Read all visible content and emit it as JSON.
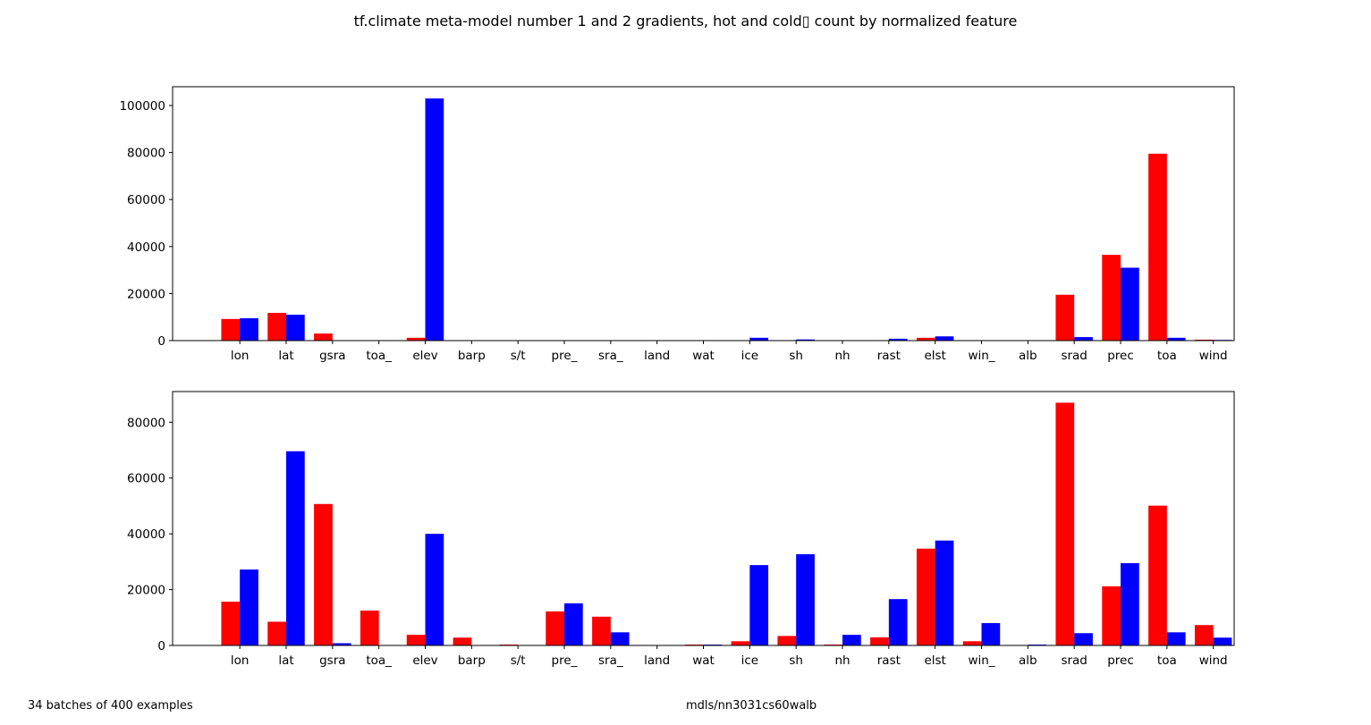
{
  "figure": {
    "title": "tf.climate meta-model number 1 and 2 gradients, hot and cold▯ count by normalized feature",
    "footer_left": "34 batches of 400 examples",
    "footer_center": "mdls/nn3031cs60walb"
  },
  "chart_data": [
    {
      "type": "bar",
      "categories": [
        "lon",
        "lat",
        "gsra",
        "toa_",
        "elev",
        "barp",
        "s/t",
        "pre_",
        "sra_",
        "land",
        "wat",
        "ice",
        "sh",
        "nh",
        "rast",
        "elst",
        "win_",
        "alb",
        "srad",
        "prec",
        "toa",
        "wind"
      ],
      "series": [
        {
          "color": "#ff0000",
          "values": [
            9200,
            11800,
            3000,
            0,
            1200,
            0,
            0,
            0,
            0,
            0,
            0,
            0,
            0,
            0,
            0,
            1200,
            0,
            0,
            19500,
            36500,
            79500,
            400
          ]
        },
        {
          "color": "#0000ff",
          "values": [
            9500,
            11000,
            0,
            0,
            103000,
            0,
            0,
            0,
            0,
            0,
            0,
            1200,
            500,
            0,
            800,
            1800,
            0,
            0,
            1500,
            31000,
            1200,
            300
          ]
        }
      ],
      "ylim": [
        0,
        108000
      ],
      "yticks": [
        0,
        20000,
        40000,
        60000,
        80000,
        100000
      ],
      "title": "",
      "xlabel": "",
      "ylabel": ""
    },
    {
      "type": "bar",
      "categories": [
        "lon",
        "lat",
        "gsra",
        "toa_",
        "elev",
        "barp",
        "s/t",
        "pre_",
        "sra_",
        "land",
        "wat",
        "ice",
        "sh",
        "nh",
        "rast",
        "elst",
        "win_",
        "alb",
        "srad",
        "prec",
        "toa",
        "wind"
      ],
      "series": [
        {
          "color": "#ff0000",
          "values": [
            15700,
            8500,
            50700,
            12500,
            3800,
            2800,
            300,
            12200,
            10300,
            0,
            300,
            1500,
            3400,
            300,
            2900,
            34700,
            1500,
            0,
            87000,
            21200,
            50100,
            7300
          ]
        },
        {
          "color": "#0000ff",
          "values": [
            27200,
            69600,
            800,
            0,
            40000,
            0,
            0,
            15100,
            4700,
            0,
            300,
            28800,
            32700,
            3800,
            16600,
            37600,
            8000,
            300,
            4400,
            29500,
            4700,
            2800
          ]
        }
      ],
      "ylim": [
        0,
        91000
      ],
      "yticks": [
        0,
        20000,
        40000,
        60000,
        80000
      ],
      "title": "",
      "xlabel": "",
      "ylabel": ""
    }
  ]
}
